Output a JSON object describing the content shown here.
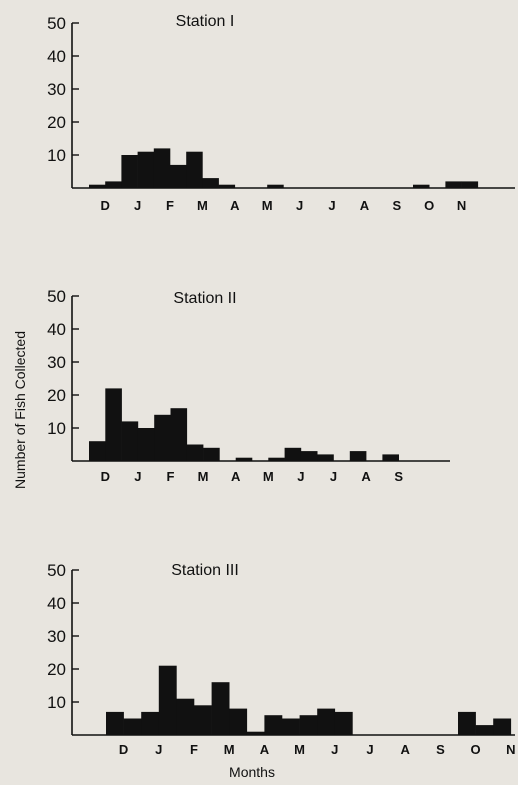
{
  "chart_data": [
    {
      "type": "bar",
      "title": "Station I",
      "months": [
        "D",
        "J",
        "F",
        "M",
        "A",
        "M",
        "J",
        "J",
        "A",
        "S",
        "O",
        "N"
      ],
      "ylim": [
        0,
        50
      ],
      "yticks": [
        10,
        20,
        30,
        40,
        50
      ],
      "bars": [
        {
          "x": 0,
          "value": 1
        },
        {
          "x": 1,
          "value": 2
        },
        {
          "x": 2,
          "value": 10
        },
        {
          "x": 3,
          "value": 11
        },
        {
          "x": 4,
          "value": 12
        },
        {
          "x": 5,
          "value": 7
        },
        {
          "x": 6,
          "value": 11
        },
        {
          "x": 7,
          "value": 3
        },
        {
          "x": 8,
          "value": 1
        },
        {
          "x": 11,
          "value": 1
        },
        {
          "x": 20,
          "value": 1
        },
        {
          "x": 22,
          "value": 2
        },
        {
          "x": 23,
          "value": 2
        }
      ]
    },
    {
      "type": "bar",
      "title": "Station II",
      "months": [
        "D",
        "J",
        "F",
        "M",
        "A",
        "M",
        "J",
        "J",
        "A",
        "S"
      ],
      "ylim": [
        0,
        50
      ],
      "yticks": [
        10,
        20,
        30,
        40,
        50
      ],
      "bars": [
        {
          "x": 0,
          "value": 6
        },
        {
          "x": 1,
          "value": 22
        },
        {
          "x": 2,
          "value": 12
        },
        {
          "x": 3,
          "value": 10
        },
        {
          "x": 4,
          "value": 14
        },
        {
          "x": 5,
          "value": 16
        },
        {
          "x": 6,
          "value": 5
        },
        {
          "x": 7,
          "value": 4
        },
        {
          "x": 9,
          "value": 1
        },
        {
          "x": 11,
          "value": 1
        },
        {
          "x": 12,
          "value": 4
        },
        {
          "x": 13,
          "value": 3
        },
        {
          "x": 14,
          "value": 2
        },
        {
          "x": 16,
          "value": 3
        },
        {
          "x": 18,
          "value": 2
        }
      ]
    },
    {
      "type": "bar",
      "title": "Station III",
      "months": [
        "D",
        "J",
        "F",
        "M",
        "A",
        "M",
        "J",
        "J",
        "A",
        "S",
        "O",
        "N"
      ],
      "ylim": [
        0,
        50
      ],
      "yticks": [
        10,
        20,
        30,
        40,
        50
      ],
      "bars": [
        {
          "x": 0,
          "value": 7
        },
        {
          "x": 1,
          "value": 5
        },
        {
          "x": 2,
          "value": 7
        },
        {
          "x": 3,
          "value": 21
        },
        {
          "x": 4,
          "value": 11
        },
        {
          "x": 5,
          "value": 9
        },
        {
          "x": 6,
          "value": 16
        },
        {
          "x": 7,
          "value": 8
        },
        {
          "x": 8,
          "value": 1
        },
        {
          "x": 9,
          "value": 6
        },
        {
          "x": 10,
          "value": 5
        },
        {
          "x": 11,
          "value": 6
        },
        {
          "x": 12,
          "value": 8
        },
        {
          "x": 13,
          "value": 7
        },
        {
          "x": 20,
          "value": 7
        },
        {
          "x": 21,
          "value": 3
        },
        {
          "x": 22,
          "value": 5
        }
      ]
    }
  ],
  "ylabel": "Number of Fish Collected",
  "xlabel": "Months",
  "colors": {
    "bar": "#111111",
    "axis": "#111111",
    "background": "#e8e5df"
  }
}
